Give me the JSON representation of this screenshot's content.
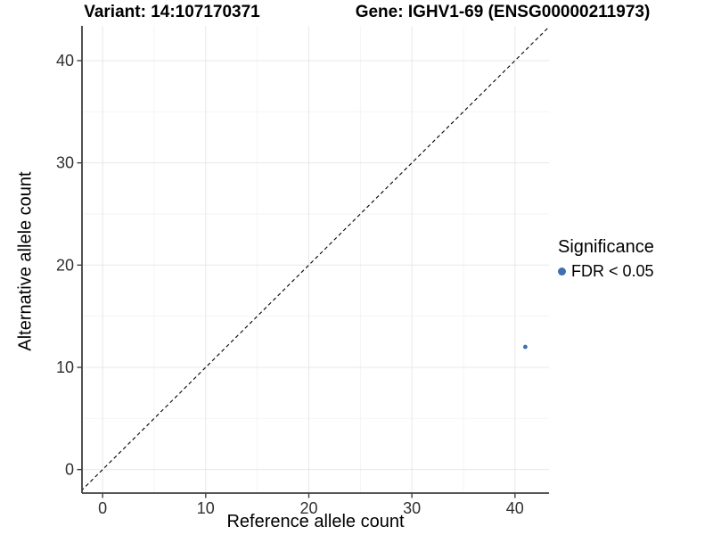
{
  "header": {
    "variant_title": "Variant: 14:107170371",
    "gene_title": "Gene: IGHV1-69 (ENSG00000211973)"
  },
  "legend": {
    "title": "Significance",
    "items": [
      {
        "label": "FDR < 0.05",
        "color": "#3D70AD"
      }
    ]
  },
  "chart_data": {
    "type": "scatter",
    "xlabel": "Reference allele count",
    "ylabel": "Alternative allele count",
    "xlim": [
      -2,
      43.3
    ],
    "ylim": [
      -2.3,
      43.4
    ],
    "x_ticks": [
      0,
      10,
      20,
      30,
      40
    ],
    "y_ticks": [
      0,
      10,
      20,
      30,
      40
    ],
    "x_minor_ticks": [
      5,
      15,
      25,
      35
    ],
    "y_minor_ticks": [
      5,
      15,
      25,
      35
    ],
    "grid": true,
    "legend_position": "right",
    "identity_line": {
      "equation": "y = x",
      "style": "dashed",
      "color": "#000000"
    },
    "series": [
      {
        "name": "FDR < 0.05",
        "color": "#3D70AD",
        "points": [
          {
            "x": 41,
            "y": 12
          }
        ]
      }
    ],
    "colors": {
      "axis_line": "#3F3F3F",
      "tick_label": "#303030",
      "grid_major": "#E8E8E8",
      "grid_minor": "#F3F3F3",
      "background": "#FFFFFF"
    }
  }
}
